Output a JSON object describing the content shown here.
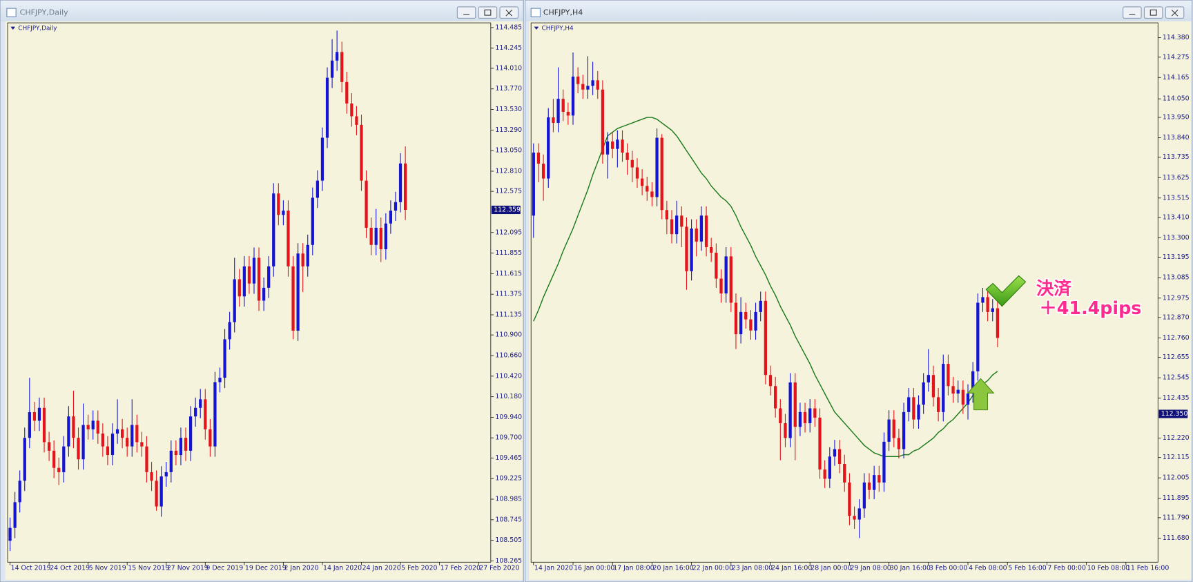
{
  "windows": [
    {
      "title": "CHFJPY,Daily"
    },
    {
      "title": "CHFJPY,H4"
    }
  ],
  "chart_data": [
    {
      "type": "candlestick",
      "title": "CHFJPY,Daily",
      "up_color": "#1414d2",
      "down_color": "#e3141b",
      "open": [
        108.5,
        108.65,
        108.95,
        109.2,
        109.7,
        110.0,
        109.9,
        110.05,
        109.65,
        109.55,
        109.35,
        109.3,
        109.6,
        109.95,
        109.7,
        109.45,
        109.85,
        109.8,
        109.9,
        109.75,
        109.6,
        109.5,
        109.75,
        109.8,
        109.7,
        109.6,
        109.85,
        109.65,
        109.6,
        109.3,
        109.2,
        108.9,
        109.25,
        109.3,
        109.55,
        109.5,
        109.7,
        109.55,
        109.95,
        110.05,
        110.15,
        109.8,
        109.6,
        110.35,
        110.4,
        110.85,
        111.05,
        111.55,
        111.35,
        111.7,
        111.5,
        111.8,
        111.3,
        111.45,
        111.7,
        112.55,
        112.3,
        112.35,
        111.7,
        110.95,
        111.85,
        111.7,
        111.95,
        112.5,
        112.7,
        113.2,
        113.9,
        114.1,
        114.2,
        113.85,
        113.6,
        113.45,
        113.35,
        112.7,
        112.15,
        111.95,
        112.15,
        111.9,
        112.2,
        112.35,
        112.45,
        112.9
      ],
      "high": [
        108.77,
        109.07,
        109.32,
        109.82,
        110.4,
        110.12,
        110.17,
        110.17,
        109.77,
        109.67,
        109.47,
        109.72,
        110.07,
        110.25,
        109.82,
        110.1,
        109.97,
        110.02,
        110.02,
        109.87,
        109.72,
        109.87,
        110.15,
        109.92,
        109.82,
        110.15,
        109.97,
        109.77,
        109.72,
        109.42,
        109.32,
        109.37,
        109.42,
        109.67,
        109.67,
        109.82,
        109.82,
        110.07,
        110.17,
        110.27,
        110.27,
        109.92,
        110.47,
        110.52,
        110.97,
        111.17,
        111.8,
        111.67,
        111.82,
        111.82,
        111.92,
        111.92,
        111.57,
        111.82,
        112.67,
        112.67,
        112.47,
        112.47,
        111.82,
        111.97,
        111.97,
        112.07,
        112.62,
        112.82,
        113.32,
        114.02,
        114.35,
        114.45,
        114.32,
        113.97,
        113.72,
        113.57,
        113.47,
        112.82,
        112.27,
        112.37,
        112.27,
        112.32,
        112.47,
        112.57,
        113.02,
        113.1
      ],
      "low": [
        108.38,
        108.53,
        108.83,
        109.08,
        109.58,
        109.78,
        109.78,
        109.53,
        109.43,
        109.23,
        109.15,
        109.18,
        109.48,
        109.58,
        109.33,
        109.33,
        109.68,
        109.68,
        109.63,
        109.48,
        109.38,
        109.38,
        109.63,
        109.58,
        109.48,
        109.48,
        109.53,
        109.48,
        109.18,
        109.08,
        108.85,
        108.78,
        109.13,
        109.18,
        109.38,
        109.38,
        109.43,
        109.43,
        109.83,
        109.93,
        109.68,
        109.48,
        109.48,
        110.23,
        110.28,
        110.73,
        110.93,
        111.23,
        111.23,
        111.38,
        111.38,
        111.18,
        111.18,
        111.33,
        111.58,
        112.18,
        112.18,
        111.58,
        110.85,
        110.83,
        111.4,
        111.58,
        111.83,
        112.38,
        112.58,
        113.08,
        113.78,
        113.98,
        113.73,
        113.48,
        113.33,
        113.23,
        112.58,
        112.03,
        111.83,
        111.83,
        111.75,
        111.78,
        112.08,
        112.23,
        112.33,
        112.24
      ],
      "close": [
        108.65,
        108.95,
        109.2,
        109.7,
        110.0,
        109.9,
        110.05,
        109.65,
        109.55,
        109.35,
        109.3,
        109.6,
        109.95,
        109.7,
        109.45,
        109.85,
        109.8,
        109.9,
        109.75,
        109.6,
        109.5,
        109.75,
        109.8,
        109.7,
        109.6,
        109.85,
        109.65,
        109.6,
        109.3,
        109.2,
        108.9,
        109.25,
        109.3,
        109.55,
        109.5,
        109.7,
        109.55,
        109.95,
        110.05,
        110.15,
        109.8,
        109.6,
        110.35,
        110.4,
        110.85,
        111.05,
        111.55,
        111.35,
        111.7,
        111.5,
        111.8,
        111.3,
        111.45,
        111.7,
        112.55,
        112.3,
        112.35,
        111.7,
        110.95,
        111.85,
        111.7,
        111.95,
        112.5,
        112.7,
        113.2,
        113.9,
        114.1,
        114.2,
        113.85,
        113.6,
        113.45,
        113.35,
        112.7,
        112.15,
        111.95,
        112.15,
        111.9,
        112.2,
        112.35,
        112.45,
        112.9,
        112.359
      ],
      "xlim": [
        -0.5,
        98.5
      ],
      "xticks": [
        {
          "value": 0,
          "label": "14 Oct 2019"
        },
        {
          "value": 8,
          "label": "24 Oct 2019"
        },
        {
          "value": 16,
          "label": "5 Nov 2019"
        },
        {
          "value": 24,
          "label": "15 Nov 2019"
        },
        {
          "value": 32,
          "label": "27 Nov 2019"
        },
        {
          "value": 40,
          "label": "9 Dec 2019"
        },
        {
          "value": 48,
          "label": "19 Dec 2019"
        },
        {
          "value": 56,
          "label": "2 Jan 2020"
        },
        {
          "value": 64,
          "label": "14 Jan 2020"
        },
        {
          "value": 72,
          "label": "24 Jan 2020"
        },
        {
          "value": 80,
          "label": "5 Feb 2020"
        },
        {
          "value": 88,
          "label": "17 Feb 2020"
        },
        {
          "value": 96,
          "label": "27 Feb 2020"
        }
      ],
      "ylim": [
        108.25,
        114.54
      ],
      "yticks": [
        114.485,
        114.245,
        {
          "value": 114.01,
          "label": "114.010"
        },
        {
          "value": 113.77,
          "label": "113.770"
        },
        {
          "value": 113.53,
          "label": "113.530"
        },
        {
          "value": 113.29,
          "label": "113.290"
        },
        {
          "value": 113.05,
          "label": "113.050"
        },
        {
          "value": 112.81,
          "label": "112.810"
        },
        112.575,
        112.095,
        111.855,
        111.615,
        111.375,
        111.135,
        {
          "value": 110.9,
          "label": "110.900"
        },
        {
          "value": 110.66,
          "label": "110.660"
        },
        {
          "value": 110.42,
          "label": "110.420"
        },
        {
          "value": 110.18,
          "label": "110.180"
        },
        {
          "value": 109.94,
          "label": "109.940"
        },
        {
          "value": 109.7,
          "label": "109.700"
        },
        109.465,
        109.225,
        108.985,
        108.745,
        108.505,
        108.265
      ],
      "current_price": 112.359
    },
    {
      "type": "candlestick",
      "title": "CHFJPY,H4",
      "up_color": "#1414d2",
      "down_color": "#e3141b",
      "open": [
        113.42,
        113.76,
        113.7,
        113.62,
        113.95,
        113.92,
        114.05,
        113.98,
        113.96,
        114.17,
        114.13,
        114.1,
        114.12,
        114.15,
        114.1,
        113.75,
        113.82,
        113.78,
        113.83,
        113.76,
        113.72,
        113.68,
        113.62,
        113.58,
        113.55,
        113.52,
        113.84,
        113.45,
        113.4,
        113.32,
        113.42,
        113.36,
        113.12,
        113.35,
        113.28,
        113.42,
        113.25,
        113.22,
        113.08,
        113.0,
        113.2,
        112.95,
        112.78,
        112.9,
        112.86,
        112.8,
        112.9,
        112.96,
        112.56,
        112.5,
        112.38,
        112.3,
        112.22,
        112.52,
        112.28,
        112.36,
        112.3,
        112.38,
        112.33,
        112.05,
        112.0,
        112.12,
        112.16,
        112.08,
        111.98,
        111.8,
        111.78,
        111.84,
        111.98,
        111.94,
        112.02,
        111.98,
        112.2,
        112.32,
        112.22,
        112.16,
        112.36,
        112.44,
        112.32,
        112.4,
        112.52,
        112.56,
        112.44,
        112.36,
        112.62,
        112.5,
        112.46,
        112.48,
        112.4,
        112.46,
        112.58,
        112.95,
        112.98,
        112.9,
        112.92
      ],
      "high": [
        113.81,
        113.81,
        113.75,
        114.0,
        114.05,
        114.22,
        114.1,
        114.03,
        114.3,
        114.22,
        114.18,
        114.28,
        114.25,
        114.2,
        114.15,
        113.87,
        113.87,
        113.88,
        113.88,
        113.81,
        113.77,
        113.73,
        113.67,
        113.63,
        113.6,
        113.89,
        113.86,
        113.5,
        113.45,
        113.5,
        113.47,
        113.41,
        113.4,
        113.4,
        113.47,
        113.47,
        113.3,
        113.27,
        113.13,
        113.25,
        113.25,
        113.0,
        112.98,
        112.95,
        112.91,
        112.95,
        113.01,
        113.01,
        112.61,
        112.55,
        112.43,
        112.35,
        112.57,
        112.57,
        112.41,
        112.41,
        112.43,
        112.43,
        112.38,
        112.1,
        112.17,
        112.21,
        112.21,
        112.13,
        112.03,
        111.85,
        111.89,
        112.03,
        112.03,
        112.07,
        112.07,
        112.25,
        112.37,
        112.37,
        112.27,
        112.41,
        112.49,
        112.49,
        112.45,
        112.57,
        112.7,
        112.61,
        112.49,
        112.67,
        112.67,
        112.55,
        112.53,
        112.53,
        112.51,
        112.63,
        113.0,
        113.03,
        113.03,
        112.97,
        112.97
      ],
      "low": [
        113.3,
        113.6,
        113.5,
        113.57,
        113.87,
        113.87,
        113.93,
        113.91,
        113.91,
        114.08,
        114.05,
        114.05,
        114.07,
        114.05,
        113.7,
        113.62,
        113.73,
        113.68,
        113.71,
        113.64,
        113.6,
        113.57,
        113.53,
        113.5,
        113.47,
        113.47,
        113.4,
        113.32,
        113.27,
        113.27,
        113.25,
        113.02,
        113.07,
        113.2,
        113.23,
        113.2,
        113.17,
        113.03,
        112.95,
        112.95,
        112.9,
        112.7,
        112.73,
        112.81,
        112.75,
        112.75,
        112.85,
        112.51,
        112.45,
        112.33,
        112.1,
        112.17,
        112.17,
        112.1,
        112.23,
        112.25,
        112.25,
        112.28,
        112.0,
        111.95,
        111.95,
        112.07,
        112.03,
        111.93,
        111.75,
        111.73,
        111.68,
        111.79,
        111.89,
        111.89,
        111.93,
        111.93,
        112.15,
        112.17,
        112.11,
        112.11,
        112.31,
        112.27,
        112.27,
        112.35,
        112.47,
        112.39,
        112.31,
        112.31,
        112.45,
        112.41,
        112.41,
        112.35,
        112.32,
        112.41,
        112.53,
        112.9,
        112.85,
        112.85,
        112.71
      ],
      "close": [
        113.76,
        113.7,
        113.62,
        113.95,
        113.92,
        114.05,
        113.98,
        113.96,
        114.17,
        114.13,
        114.1,
        114.12,
        114.15,
        114.1,
        113.75,
        113.82,
        113.78,
        113.83,
        113.76,
        113.72,
        113.68,
        113.62,
        113.58,
        113.55,
        113.52,
        113.84,
        113.45,
        113.4,
        113.32,
        113.42,
        113.36,
        113.12,
        113.35,
        113.28,
        113.42,
        113.25,
        113.22,
        113.08,
        113.0,
        113.2,
        112.95,
        112.78,
        112.9,
        112.86,
        112.8,
        112.9,
        112.96,
        112.56,
        112.5,
        112.38,
        112.3,
        112.22,
        112.52,
        112.28,
        112.36,
        112.3,
        112.38,
        112.33,
        112.05,
        112.0,
        112.12,
        112.16,
        112.08,
        111.98,
        111.8,
        111.78,
        111.84,
        111.98,
        111.94,
        112.02,
        111.98,
        112.2,
        112.32,
        112.22,
        112.16,
        112.36,
        112.44,
        112.32,
        112.4,
        112.52,
        112.56,
        112.44,
        112.36,
        112.62,
        112.5,
        112.46,
        112.48,
        112.4,
        112.46,
        112.58,
        112.95,
        112.98,
        112.9,
        112.92,
        112.76
      ],
      "indicator": {
        "color": "#1b7a1b",
        "values": [
          112.85,
          112.91,
          112.98,
          113.04,
          113.1,
          113.16,
          113.23,
          113.29,
          113.35,
          113.42,
          113.49,
          113.56,
          113.64,
          113.71,
          113.78,
          113.85,
          113.87,
          113.89,
          113.9,
          113.91,
          113.92,
          113.93,
          113.94,
          113.95,
          113.95,
          113.94,
          113.92,
          113.9,
          113.88,
          113.85,
          113.81,
          113.77,
          113.73,
          113.69,
          113.65,
          113.62,
          113.58,
          113.55,
          113.52,
          113.5,
          113.47,
          113.42,
          113.36,
          113.31,
          113.26,
          113.2,
          113.15,
          113.1,
          113.04,
          112.99,
          112.93,
          112.88,
          112.83,
          112.77,
          112.72,
          112.67,
          112.62,
          112.56,
          112.51,
          112.46,
          112.41,
          112.36,
          112.33,
          112.3,
          112.27,
          112.24,
          112.21,
          112.18,
          112.16,
          112.14,
          112.13,
          112.12,
          112.12,
          112.12,
          112.12,
          112.13,
          112.13,
          112.15,
          112.16,
          112.18,
          112.2,
          112.22,
          112.25,
          112.27,
          112.3,
          112.32,
          112.35,
          112.38,
          112.41,
          112.45,
          112.48,
          112.51,
          112.53,
          112.56,
          112.58
        ]
      },
      "xlim": [
        -0.5,
        126.5
      ],
      "xticks": [
        {
          "value": 0,
          "label": "14 Jan 2020"
        },
        {
          "value": 8,
          "label": "16 Jan 00:00"
        },
        {
          "value": 16,
          "label": "17 Jan 08:00"
        },
        {
          "value": 24,
          "label": "20 Jan 16:00"
        },
        {
          "value": 32,
          "label": "22 Jan 00:00"
        },
        {
          "value": 40,
          "label": "23 Jan 08:00"
        },
        {
          "value": 48,
          "label": "24 Jan 16:00"
        },
        {
          "value": 56,
          "label": "28 Jan 00:00"
        },
        {
          "value": 64,
          "label": "29 Jan 08:00"
        },
        {
          "value": 72,
          "label": "30 Jan 16:00"
        },
        {
          "value": 80,
          "label": "3 Feb 00:00"
        },
        {
          "value": 88,
          "label": "4 Feb 08:00"
        },
        {
          "value": 96,
          "label": "5 Feb 16:00"
        },
        {
          "value": 104,
          "label": "7 Feb 00:00"
        },
        {
          "value": 112,
          "label": "10 Feb 08:00"
        },
        {
          "value": 120,
          "label": "11 Feb 16:00"
        }
      ],
      "ylim": [
        111.55,
        114.46
      ],
      "yticks": [
        {
          "value": 114.38,
          "label": "114.380"
        },
        114.275,
        114.165,
        {
          "value": 114.05,
          "label": "114.050"
        },
        {
          "value": 113.95,
          "label": "113.950"
        },
        {
          "value": 113.84,
          "label": "113.840"
        },
        113.735,
        113.625,
        113.515,
        {
          "value": 113.41,
          "label": "113.410"
        },
        {
          "value": 113.3,
          "label": "113.300"
        },
        113.195,
        113.085,
        112.975,
        {
          "value": 112.87,
          "label": "112.870"
        },
        {
          "value": 112.76,
          "label": "112.760"
        },
        112.655,
        112.545,
        112.435,
        {
          "value": 112.22,
          "label": "112.220"
        },
        112.115,
        112.005,
        111.895,
        {
          "value": 111.79,
          "label": "111.790"
        },
        {
          "value": 111.68,
          "label": "111.680"
        }
      ],
      "current_price": {
        "value": 112.35,
        "label": "112.350"
      }
    }
  ],
  "annotation": [
    "決済",
    "＋41.4pips"
  ]
}
